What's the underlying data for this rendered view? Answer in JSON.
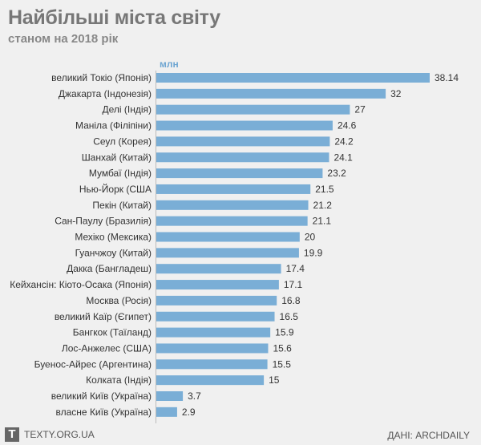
{
  "header": {
    "title": "Найбільші міста світу",
    "subtitle": "станом на 2018 рік"
  },
  "chart_data": {
    "type": "bar",
    "orientation": "horizontal",
    "unit": "млн",
    "categories": [
      "великий Токіо (Японія)",
      "Джакарта (Індонезія)",
      "Делі (Індія)",
      "Маніла (Філіпіни)",
      "Сеул (Корея)",
      "Шанхай (Китай)",
      "Мумбаї (Індія)",
      "Нью-Йорк (США",
      "Пекін (Китай)",
      "Сан-Паулу (Бразилія)",
      "Мехіко (Мексика)",
      "Гуанчжоу (Китай)",
      "Дакка (Бангладеш)",
      "Кейхансін: Кіото-Осака (Японія)",
      "Москва (Росія)",
      "великий Каїр (Єгипет)",
      "Бангкок (Таїланд)",
      "Лос-Анжелес (США)",
      "Буенос-Айрес (Аргентина)",
      "Колката (Індія)",
      "великий Київ (Україна)",
      "власне Київ (Україна)"
    ],
    "values": [
      38.14,
      32,
      27,
      24.6,
      24.2,
      24.1,
      23.2,
      21.5,
      21.2,
      21.1,
      20,
      19.9,
      17.4,
      17.1,
      16.8,
      16.5,
      15.9,
      15.6,
      15.5,
      15,
      3.7,
      2.9
    ],
    "value_labels": [
      "38.14",
      "32",
      "27",
      "24.6",
      "24.2",
      "24.1",
      "23.2",
      "21.5",
      "21.2",
      "21.1",
      "20",
      "19.9",
      "17.4",
      "17.1",
      "16.8",
      "16.5",
      "15.9",
      "15.6",
      "15.5",
      "15",
      "3.7",
      "2.9"
    ],
    "xlim": [
      0,
      38.14
    ],
    "bar_color": "#7aaed6",
    "grid": false
  },
  "footer": {
    "logo_letter": "T",
    "site": "TEXTY.ORG.UA",
    "source": "ДАНІ: ARCHDAILY"
  }
}
